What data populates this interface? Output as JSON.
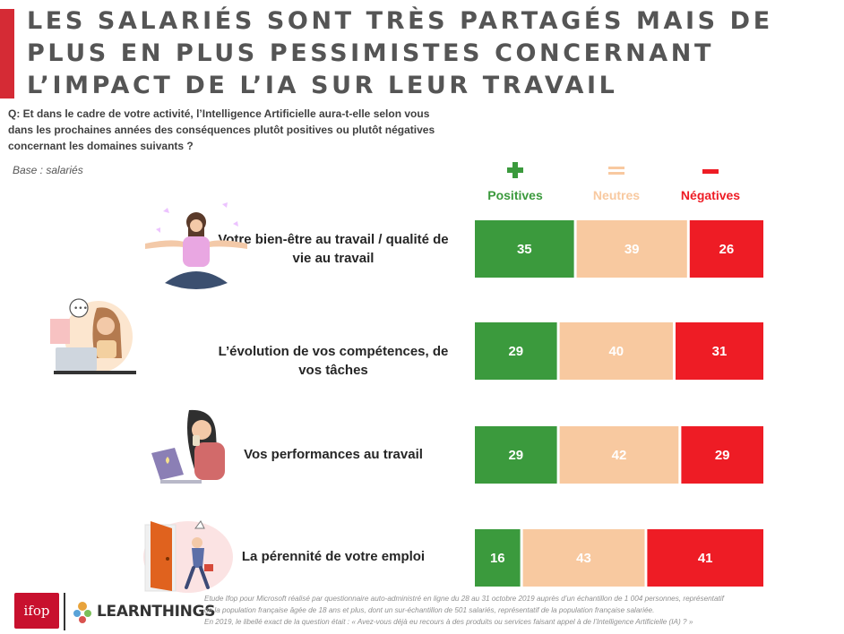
{
  "title": "LES SALARIÉS SONT TRÈS PARTAGÉS MAIS DE PLUS EN PLUS PESSIMISTES CONCERNANT L’IMPACT DE L’IA SUR LEUR TRAVAIL",
  "question": "Q: Et dans le cadre de votre activité, l’Intelligence Artificielle aura-t-elle selon vous dans les prochaines années des conséquences plutôt positives ou plutôt négatives concernant les domaines suivants ?",
  "base": "Base : salariés",
  "colors": {
    "accent": "#d52b35",
    "positive": "#3b9a3d",
    "neutral": "#f8c9a0",
    "negative": "#ee1c25",
    "ifop": "#c8102e"
  },
  "icons": {
    "positive": "plus-icon",
    "neutral": "equals-icon",
    "negative": "minus-icon"
  },
  "logos": {
    "ifop": "ifop",
    "learnthings": "LEARNTHINGS"
  },
  "footnote": {
    "line1": "Etude Ifop pour Microsoft réalisé par questionnaire auto-administré en ligne du 28 au 31 octobre 2019 auprès d’un échantillon de 1 004 personnes, représentatif",
    "line2": "de la population française âgée de 18 ans et plus, dont un sur-échantillon de 501 salariés, représentatif de la population française salariée.",
    "line3": "En 2019, le libellé exact de la question était : « Avez-vous déjà eu recours à des produits ou services faisant appel à de l’Intelligence Artificielle (IA) ? »"
  },
  "chart_data": {
    "type": "bar",
    "orientation": "horizontal",
    "stacked": true,
    "percent_stacked": true,
    "categories": [
      "Votre bien-être au travail / qualité de vie au travail",
      "L’évolution de vos compétences, de vos tâches",
      "Vos performances au travail",
      "La pérennité de votre emploi"
    ],
    "series": [
      {
        "name": "Positives",
        "values": [
          35,
          29,
          29,
          16
        ]
      },
      {
        "name": "Neutres",
        "values": [
          39,
          40,
          42,
          43
        ]
      },
      {
        "name": "Négatives",
        "values": [
          26,
          31,
          29,
          41
        ]
      }
    ],
    "legend": "top",
    "grid": false
  }
}
